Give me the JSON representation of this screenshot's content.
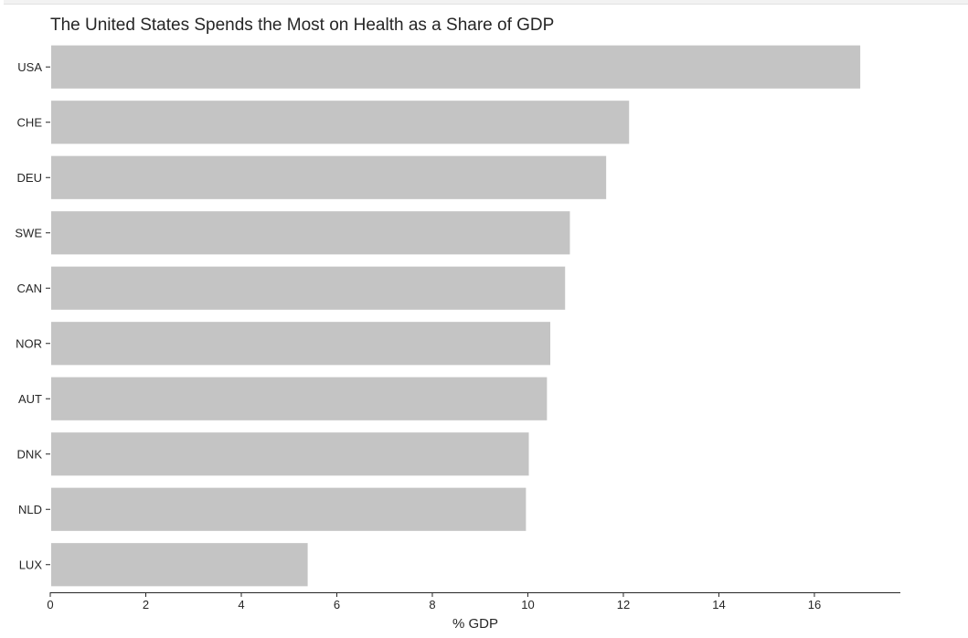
{
  "chart_data": {
    "type": "bar",
    "orientation": "horizontal",
    "title": "The United States Spends the Most on Health as a Share of GDP",
    "xlabel": "% GDP",
    "ylabel": "",
    "categories": [
      "USA",
      "CHE",
      "DEU",
      "SWE",
      "CAN",
      "NOR",
      "AUT",
      "DNK",
      "NLD",
      "LUX"
    ],
    "values": [
      16.96,
      12.12,
      11.64,
      10.88,
      10.78,
      10.47,
      10.4,
      10.02,
      9.96,
      5.39
    ],
    "xlim": [
      0,
      17.8
    ],
    "xticks": [
      0,
      2,
      4,
      6,
      8,
      10,
      12,
      14,
      16
    ],
    "bar_color": "#c4c4c4",
    "grid": false
  }
}
